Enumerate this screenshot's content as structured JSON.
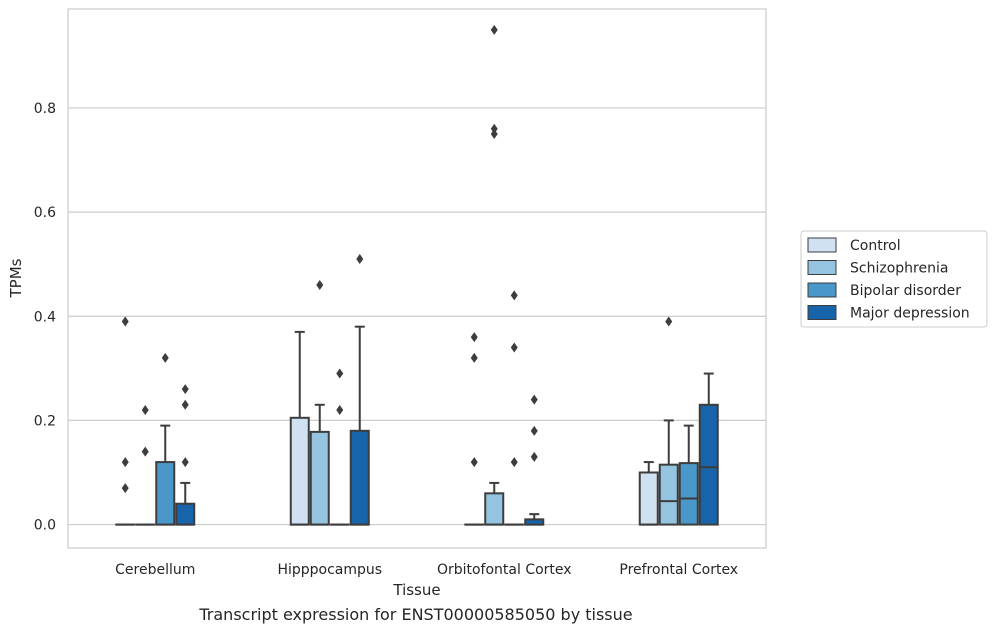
{
  "caption": "Transcript expression for ENST00000585050 by tissue",
  "chart_data": {
    "type": "box",
    "xlabel": "Tissue",
    "ylabel": "TPMs",
    "ylim": [
      -0.045,
      0.99
    ],
    "yticks": [
      0.0,
      0.2,
      0.4,
      0.6,
      0.8
    ],
    "ytick_labels": [
      "0.0",
      "0.2",
      "0.4",
      "0.6",
      "0.8"
    ],
    "grid": "horizontal",
    "legend_position": "right",
    "categories": [
      "Cerebellum",
      "Hipppocampus",
      "Orbitofontal Cortex",
      "Prefrontal Cortex"
    ],
    "series": [
      {
        "name": "Control",
        "color": "#d0e1f2",
        "boxes": [
          {
            "q1": 0,
            "median": 0,
            "q3": 0,
            "whisker_low": 0,
            "whisker_high": 0,
            "outliers": [
              0.07,
              0.12,
              0.39
            ]
          },
          {
            "q1": 0,
            "median": 0,
            "q3": 0.205,
            "whisker_low": 0,
            "whisker_high": 0.37,
            "outliers": []
          },
          {
            "q1": 0,
            "median": 0,
            "q3": 0,
            "whisker_low": 0,
            "whisker_high": 0,
            "outliers": [
              0.12,
              0.32,
              0.36
            ]
          },
          {
            "q1": 0,
            "median": 0,
            "q3": 0.1,
            "whisker_low": 0,
            "whisker_high": 0.12,
            "outliers": []
          }
        ]
      },
      {
        "name": "Schizophrenia",
        "color": "#94c4df",
        "boxes": [
          {
            "q1": 0,
            "median": 0,
            "q3": 0,
            "whisker_low": 0,
            "whisker_high": 0,
            "outliers": [
              0.14,
              0.22
            ]
          },
          {
            "q1": 0,
            "median": 0,
            "q3": 0.178,
            "whisker_low": 0,
            "whisker_high": 0.23,
            "outliers": [
              0.46
            ]
          },
          {
            "q1": 0,
            "median": 0,
            "q3": 0.06,
            "whisker_low": 0,
            "whisker_high": 0.08,
            "outliers": [
              0.75,
              0.76,
              0.95
            ]
          },
          {
            "q1": 0,
            "median": 0.045,
            "q3": 0.115,
            "whisker_low": 0,
            "whisker_high": 0.2,
            "outliers": [
              0.39
            ]
          }
        ]
      },
      {
        "name": "Bipolar disorder",
        "color": "#4a98c9",
        "boxes": [
          {
            "q1": 0,
            "median": 0,
            "q3": 0.12,
            "whisker_low": 0,
            "whisker_high": 0.19,
            "outliers": [
              0.32
            ]
          },
          {
            "q1": 0,
            "median": 0,
            "q3": 0,
            "whisker_low": 0,
            "whisker_high": 0,
            "outliers": [
              0.22,
              0.29
            ]
          },
          {
            "q1": 0,
            "median": 0,
            "q3": 0,
            "whisker_low": 0,
            "whisker_high": 0,
            "outliers": [
              0.12,
              0.34,
              0.44
            ]
          },
          {
            "q1": 0,
            "median": 0.05,
            "q3": 0.118,
            "whisker_low": 0,
            "whisker_high": 0.19,
            "outliers": []
          }
        ]
      },
      {
        "name": "Major depression",
        "color": "#1764ab",
        "boxes": [
          {
            "q1": 0,
            "median": 0,
            "q3": 0.04,
            "whisker_low": 0,
            "whisker_high": 0.08,
            "outliers": [
              0.12,
              0.23,
              0.26
            ]
          },
          {
            "q1": 0,
            "median": 0,
            "q3": 0.18,
            "whisker_low": 0,
            "whisker_high": 0.38,
            "outliers": [
              0.51
            ]
          },
          {
            "q1": 0,
            "median": 0,
            "q3": 0.01,
            "whisker_low": 0,
            "whisker_high": 0.02,
            "outliers": [
              0.13,
              0.18,
              0.24
            ]
          },
          {
            "q1": 0,
            "median": 0.11,
            "q3": 0.23,
            "whisker_low": 0,
            "whisker_high": 0.29,
            "outliers": []
          }
        ]
      }
    ]
  }
}
